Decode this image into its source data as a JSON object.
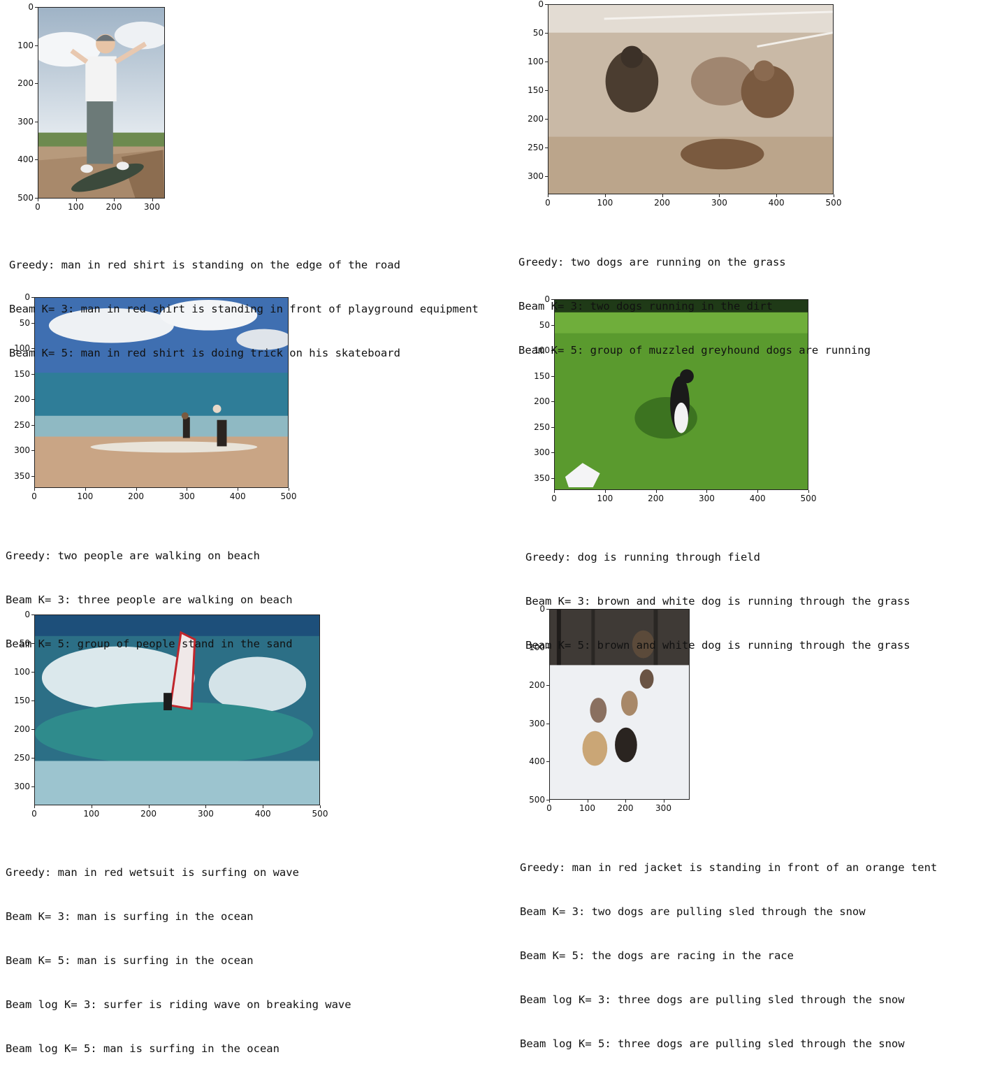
{
  "panels": [
    {
      "image_name": "boy-skateboard-photo",
      "y_ticks": [
        "0",
        "100",
        "200",
        "300",
        "400",
        "500"
      ],
      "x_ticks": [
        "0",
        "100",
        "200",
        "300"
      ],
      "captions": [
        "Greedy: man in red shirt is standing on the edge of the road",
        "Beam K= 3: man in red shirt is standing in front of playground equipment",
        "Beam K= 5: man in red shirt is doing trick on his skateboard"
      ]
    },
    {
      "image_name": "greyhounds-racing-photo",
      "y_ticks": [
        "0",
        "50",
        "100",
        "150",
        "200",
        "250",
        "300"
      ],
      "x_ticks": [
        "0",
        "100",
        "200",
        "300",
        "400",
        "500"
      ],
      "captions": [
        "Greedy: two dogs are running on the grass",
        "Beam K= 3: two dogs running in the dirt",
        "Beam K= 5: group of muzzled greyhound dogs are running"
      ]
    },
    {
      "image_name": "beach-people-photo",
      "y_ticks": [
        "0",
        "50",
        "100",
        "150",
        "200",
        "250",
        "300",
        "350"
      ],
      "x_ticks": [
        "0",
        "100",
        "200",
        "300",
        "400",
        "500"
      ],
      "captions": [
        "Greedy: two people are walking on beach",
        "Beam K= 3: three people are walking on beach",
        "Beam K= 5: group of people stand in the sand"
      ]
    },
    {
      "image_name": "dog-field-photo",
      "y_ticks": [
        "0",
        "50",
        "100",
        "150",
        "200",
        "250",
        "300",
        "350"
      ],
      "x_ticks": [
        "0",
        "100",
        "200",
        "300",
        "400",
        "500"
      ],
      "captions": [
        "Greedy: dog is running through field",
        "Beam K= 3: brown and white dog is running through the grass",
        "Beam K= 5: brown and white dog is running through the grass"
      ]
    },
    {
      "image_name": "windsurfer-photo",
      "y_ticks": [
        "0",
        "50",
        "100",
        "150",
        "200",
        "250",
        "300"
      ],
      "x_ticks": [
        "0",
        "100",
        "200",
        "300",
        "400",
        "500"
      ],
      "captions": [
        "Greedy: man in red wetsuit is surfing on wave",
        "Beam K= 3: man is surfing in the ocean",
        "Beam K= 5: man is surfing in the ocean",
        "Beam log K= 3: surfer is riding wave on breaking wave",
        "Beam log K= 5: man is surfing in the ocean"
      ]
    },
    {
      "image_name": "sled-dogs-photo",
      "y_ticks": [
        "0",
        "100",
        "200",
        "300",
        "400",
        "500"
      ],
      "x_ticks": [
        "0",
        "100",
        "200",
        "300"
      ],
      "captions": [
        "Greedy: man in red jacket is standing in front of an orange tent",
        "Beam K= 3: two dogs are pulling sled through the snow",
        "Beam K= 5: the dogs are racing in the race",
        "Beam log K= 3: three dogs are pulling sled through the snow",
        "Beam log K= 5: three dogs are pulling sled through the snow"
      ]
    }
  ]
}
